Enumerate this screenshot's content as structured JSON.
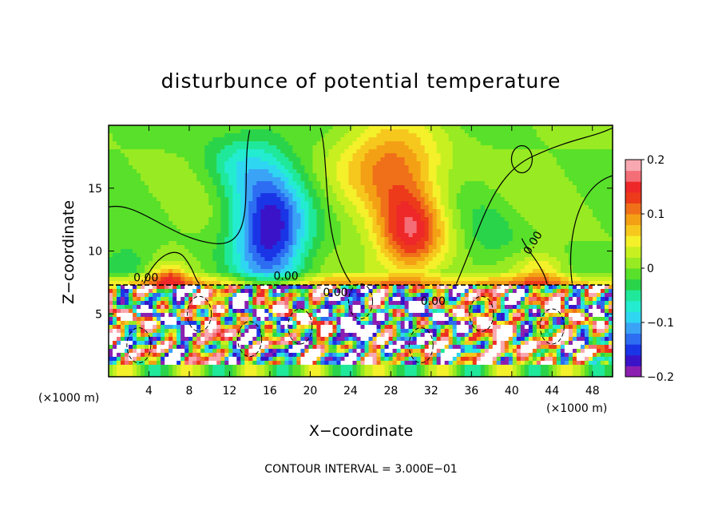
{
  "chart_data": {
    "type": "heatmap",
    "title": "disturbunce of potential temperature",
    "xlabel": "X−coordinate",
    "ylabel": "Z−coordinate",
    "x_unit_left": "(×1000 m)",
    "x_unit_right": "(×1000 m)",
    "xlim": [
      0,
      50
    ],
    "ylim": [
      0,
      20
    ],
    "x_ticks": [
      4,
      8,
      12,
      16,
      20,
      24,
      28,
      32,
      36,
      40,
      44,
      48
    ],
    "y_ticks": [
      5,
      10,
      15
    ],
    "colorbar": {
      "min": -0.2,
      "max": 0.2,
      "ticks": [
        -0.2,
        -0.1,
        0,
        0.1,
        0.2
      ],
      "tick_labels": [
        "−0.2",
        "−0.1",
        "0",
        "0.1",
        "0.2"
      ],
      "colors": [
        "#8b1fb0",
        "#3a13c8",
        "#1a35e6",
        "#2c6df2",
        "#3aa3f6",
        "#2fd6f2",
        "#23ecd0",
        "#20e89a",
        "#2ad44a",
        "#58e02a",
        "#98ea22",
        "#c8f020",
        "#f4f02a",
        "#f6c81e",
        "#f4a014",
        "#f0701a",
        "#ec3a1a",
        "#ee2828",
        "#f46e78",
        "#f8a8b0"
      ]
    },
    "features": [
      {
        "kind": "negative",
        "x": 16,
        "z": 11.5,
        "value": -0.17
      },
      {
        "kind": "positive",
        "x": 30,
        "z": 11.5,
        "value": 0.15
      },
      {
        "kind": "positive",
        "x": 43,
        "z": 8.5,
        "value": 0.06
      },
      {
        "kind": "positive",
        "x": 6,
        "z": 8.2,
        "value": 0.08
      }
    ],
    "contour_labels": [
      "0.00",
      "0.00",
      "0.00",
      "0.00",
      "0.00"
    ],
    "footer": "CONTOUR INTERVAL = 3.000E−01"
  }
}
